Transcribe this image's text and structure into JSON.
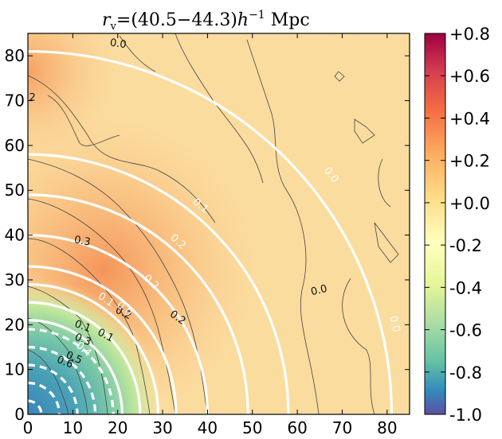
{
  "chart_data": {
    "type": "heatmap",
    "title": "r_v = (40.5−44.3) h⁻¹ Mpc",
    "title_parts": {
      "r": "r",
      "sub": "v",
      "eq": "=(40.5−44.3)",
      "h": "h",
      "sup": "−1",
      "unit": " Mpc"
    },
    "xlabel": "",
    "ylabel": "",
    "xlim": [
      0,
      85
    ],
    "ylim": [
      0,
      85
    ],
    "x_ticks": [
      0,
      10,
      20,
      30,
      40,
      50,
      60,
      70,
      80
    ],
    "y_ticks": [
      0,
      10,
      20,
      30,
      40,
      50,
      60,
      70,
      80
    ],
    "colorbar": {
      "range": [
        -1.0,
        0.8
      ],
      "ticks": [
        0.8,
        0.6,
        0.4,
        0.2,
        0.0,
        -0.2,
        -0.4,
        -0.6,
        -0.8,
        -1.0
      ],
      "tick_labels": [
        "+0.8",
        "+0.6",
        "+0.4",
        "+0.2",
        "+0.0",
        "-0.2",
        "-0.4",
        "-0.6",
        "-0.8",
        "-1.0"
      ],
      "colors": [
        "#9e0142",
        "#d53e4f",
        "#f46d43",
        "#fdae61",
        "#fee08b",
        "#ffffbf",
        "#e6f598",
        "#abdda4",
        "#66c2a5",
        "#3288bd",
        "#5e4fa2"
      ]
    },
    "black_contour_labels": [
      {
        "text": "0.0",
        "x": 20,
        "y": 82
      },
      {
        "text": "0.3",
        "x": 12,
        "y": 38
      },
      {
        "text": "0.2",
        "x": 21,
        "y": 22
      },
      {
        "text": "0.2",
        "x": 33,
        "y": 21
      },
      {
        "text": "0.0",
        "x": 65,
        "y": 27
      },
      {
        "text": "0.1",
        "x": 12,
        "y": 19
      },
      {
        "text": "0.1",
        "x": 17,
        "y": 17
      },
      {
        "text": "0.3",
        "x": 12,
        "y": 16
      },
      {
        "text": "0.5",
        "x": 10,
        "y": 12
      },
      {
        "text": "0.6",
        "x": 8,
        "y": 11
      },
      {
        "text": "2",
        "x": 1,
        "y": 70
      }
    ],
    "white_contour_labels": [
      {
        "text": "0.1",
        "x": 38,
        "y": 46
      },
      {
        "text": "0.2",
        "x": 33,
        "y": 38
      },
      {
        "text": "0.2",
        "x": 27,
        "y": 29
      },
      {
        "text": "0.1",
        "x": 17,
        "y": 25
      },
      {
        "text": "0.0",
        "x": 21,
        "y": 23
      },
      {
        "text": "0.0",
        "x": 67,
        "y": 53
      },
      {
        "text": "0.0",
        "x": 81,
        "y": 20
      },
      {
        "text": "0.4",
        "x": 12,
        "y": 14
      }
    ],
    "white_contours_radii": [
      81,
      58,
      49,
      40,
      33,
      29,
      25,
      21
    ],
    "white_dashed_radii": [
      19,
      15,
      11,
      7,
      3
    ]
  }
}
